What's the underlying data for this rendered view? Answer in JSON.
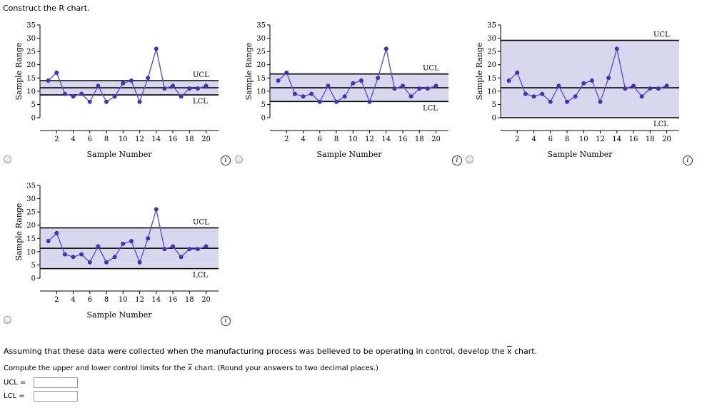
{
  "prompt_title": "Construct the R chart.",
  "charts": [
    {
      "id": "a",
      "ucl": 14,
      "cl": 11.3,
      "lcl": 8.6,
      "ucl_label": "UCL",
      "lcl_label": "LCL"
    },
    {
      "id": "b",
      "ucl": 16.5,
      "cl": 11.3,
      "lcl": 6.1,
      "ucl_label": "UCL",
      "lcl_label": "LCL"
    },
    {
      "id": "c",
      "ucl": 29.2,
      "cl": 11.3,
      "lcl": 0,
      "ucl_label": "UCL",
      "lcl_label": "LCL"
    },
    {
      "id": "d",
      "ucl": 19,
      "cl": 11.3,
      "lcl": 3.6,
      "ucl_label": "UCL",
      "lcl_label": "LCL"
    }
  ],
  "chart_data": {
    "type": "line",
    "title": "",
    "xlabel": "Sample Number",
    "ylabel": "Sample Range",
    "x": [
      1,
      2,
      3,
      4,
      5,
      6,
      7,
      8,
      9,
      10,
      11,
      12,
      13,
      14,
      15,
      16,
      17,
      18,
      19,
      20
    ],
    "values": [
      14,
      17,
      9,
      8,
      9,
      6,
      12,
      6,
      8,
      13,
      14,
      6,
      15,
      26,
      11,
      12,
      8,
      11,
      11,
      12
    ],
    "ylim": [
      0,
      35
    ],
    "yticks": [
      0,
      5,
      10,
      15,
      20,
      25,
      30,
      35
    ],
    "xticks": [
      2,
      4,
      6,
      8,
      10,
      12,
      14,
      16,
      18,
      20
    ]
  },
  "question": {
    "text_before": "Assuming that these data were collected when the manufacturing process was believed to be operating in control, develop the ",
    "xbar": "x",
    "text_after": " chart.",
    "compute_before": "Compute the upper and lower control limits for the ",
    "compute_after": " chart. (Round your answers to two decimal places.)"
  },
  "fields": {
    "ucl_label": "UCL  =",
    "lcl_label": "LCL  =",
    "ucl_value": "",
    "lcl_value": ""
  },
  "info_glyph": "i",
  "colors": {
    "band": "#d9d7ee",
    "line": "#5a52c8",
    "point": "#3f33b8",
    "limit": "#000000"
  }
}
